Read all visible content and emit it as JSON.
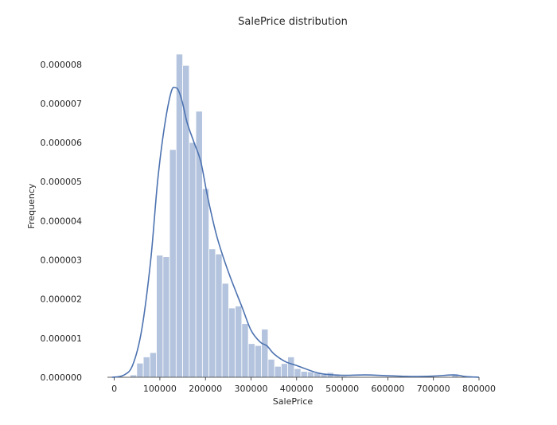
{
  "chart_data": {
    "type": "bar",
    "title": "SalePrice distribution",
    "xlabel": "SalePrice",
    "ylabel": "Frequency",
    "xlim": [
      -15000,
      800000
    ],
    "ylim": [
      0,
      8.3e-06
    ],
    "xticks": [
      0,
      100000,
      200000,
      300000,
      400000,
      500000,
      600000,
      700000,
      800000
    ],
    "xtick_labels": [
      "0",
      "100000",
      "200000",
      "300000",
      "400000",
      "500000",
      "600000",
      "700000",
      "800000"
    ],
    "yticks": [
      0,
      1e-06,
      2e-06,
      3e-06,
      4e-06,
      5e-06,
      6e-06,
      7e-06,
      8e-06
    ],
    "ytick_labels": [
      "0.000000",
      "0.000001",
      "0.000002",
      "0.000003",
      "0.000004",
      "0.000005",
      "0.000006",
      "0.000007",
      "0.000008"
    ],
    "grid": false,
    "histogram": {
      "bin_start": 34900,
      "bin_width": 14400,
      "densities": [
        6e-08,
        3.6e-07,
        5.2e-07,
        6.3e-07,
        3.12e-06,
        3.08e-06,
        5.82e-06,
        8.26e-06,
        7.97e-06,
        6e-06,
        6.8e-06,
        4.82e-06,
        3.28e-06,
        3.15e-06,
        2.4e-06,
        1.77e-06,
        1.82e-06,
        1.37e-06,
        8.6e-07,
        8.1e-07,
        1.23e-06,
        4.6e-07,
        2.8e-07,
        3.5e-07,
        5.2e-07,
        2.2e-07,
        1.5e-07,
        1.4e-07,
        1.1e-07,
        7e-08,
        1.2e-07,
        4e-08,
        3e-08,
        2e-08,
        2e-08,
        1e-08,
        1e-08,
        1e-08,
        1e-08,
        1e-08,
        1e-08,
        0.0,
        1e-08,
        0.0,
        0.0,
        0.0,
        0.0,
        0.0,
        0.0,
        7e-08,
        0.0
      ]
    },
    "kde": {
      "x": [
        -5000,
        20000,
        40000,
        60000,
        80000,
        95000,
        110000,
        125000,
        135000,
        142000,
        150000,
        160000,
        175000,
        190000,
        205000,
        225000,
        250000,
        280000,
        300000,
        320000,
        335000,
        350000,
        375000,
        400000,
        450000,
        500000,
        550000,
        600000,
        650000,
        700000,
        745000,
        770000,
        800000
      ],
      "y": [
        0.0,
        5e-08,
        3e-07,
        1.2e-06,
        3e-06,
        5e-06,
        6.4e-06,
        7.3e-06,
        7.4e-06,
        7.3e-06,
        7e-06,
        6.5e-06,
        6e-06,
        5.5e-06,
        4.6e-06,
        3.6e-06,
        2.7e-06,
        1.8e-06,
        1.2e-06,
        9e-07,
        8e-07,
        6e-07,
        4e-07,
        3e-07,
        1e-07,
        5e-08,
        6e-08,
        4e-08,
        2e-08,
        3e-08,
        6e-08,
        2e-08,
        0.0
      ]
    }
  }
}
